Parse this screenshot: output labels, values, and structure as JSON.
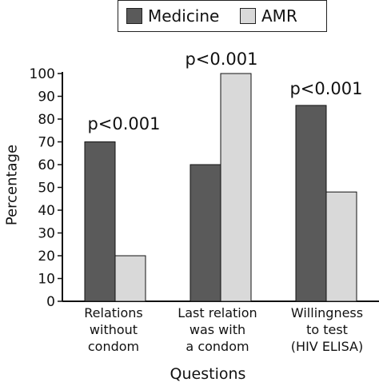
{
  "chart_data": {
    "type": "bar",
    "categories": [
      "Relations\nwithout\ncondom",
      "Last relation\nwas with\na condom",
      "Willingness\nto test\n(HIV ELISA)"
    ],
    "series": [
      {
        "name": "Medicine",
        "values": [
          70,
          60,
          86
        ],
        "color": "#5a5a5a"
      },
      {
        "name": "AMR",
        "values": [
          20,
          100,
          48
        ],
        "color": "#d9d9d9"
      }
    ],
    "annotations": [
      "p<0.001",
      "p<0.001",
      "p<0.001"
    ],
    "xlabel": "Questions",
    "ylabel": "Percentage",
    "ylim": [
      0,
      100
    ],
    "yticks": [
      0,
      10,
      20,
      30,
      40,
      50,
      60,
      70,
      80,
      90,
      100
    ],
    "grid": false,
    "legend_position": "top"
  }
}
